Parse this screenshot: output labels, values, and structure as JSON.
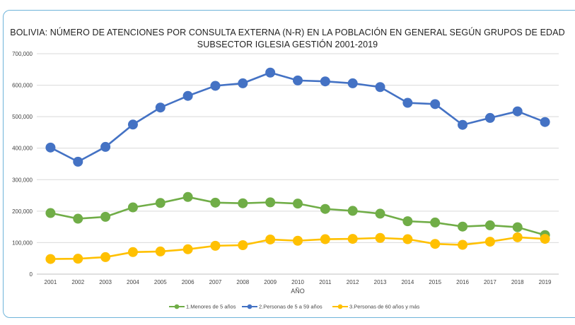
{
  "chart_data": {
    "type": "line",
    "title": "BOLIVIA: NÚMERO DE ATENCIONES POR CONSULTA EXTERNA (N-R) EN LA POBLACIÓN EN GENERAL SEGÚN GRUPOS DE EDAD",
    "subtitle": "SUBSECTOR IGLESIA GESTIÓN 2001-2019",
    "xlabel": "AÑO",
    "ylabel": "",
    "ylim": [
      0,
      700000
    ],
    "yticks": [
      0,
      100000,
      200000,
      300000,
      400000,
      500000,
      600000,
      700000
    ],
    "ytick_labels": [
      "0",
      "100,000",
      "200,000",
      "300,000",
      "400,000",
      "500,000",
      "600,000",
      "700,000"
    ],
    "grid": "horizontal",
    "legend_position": "bottom",
    "categories": [
      "2001",
      "2002",
      "2003",
      "2004",
      "2005",
      "2006",
      "2007",
      "2008",
      "2009",
      "2010",
      "2011",
      "2012",
      "2013",
      "2014",
      "2015",
      "2016",
      "2017",
      "2018",
      "2019"
    ],
    "series": [
      {
        "name": "1.Menores de 5 años",
        "color": "#70ad47",
        "values": [
          194000,
          176000,
          182000,
          212000,
          226000,
          245000,
          227000,
          225000,
          228000,
          224000,
          207000,
          201000,
          192000,
          168000,
          164000,
          151000,
          155000,
          149000,
          124000
        ]
      },
      {
        "name": "2.Personas de 5 a 59 años",
        "color": "#4472c4",
        "values": [
          402000,
          357000,
          404000,
          475000,
          529000,
          566000,
          598000,
          606000,
          640000,
          615000,
          612000,
          606000,
          594000,
          544000,
          540000,
          474000,
          496000,
          517000,
          483000
        ]
      },
      {
        "name": "3.Personas de 60 años y más",
        "color": "#ffc000",
        "values": [
          48000,
          49000,
          54000,
          70000,
          72000,
          79000,
          90000,
          92000,
          110000,
          106000,
          111000,
          112000,
          115000,
          111000,
          96000,
          93000,
          103000,
          117000,
          112000
        ]
      }
    ]
  }
}
